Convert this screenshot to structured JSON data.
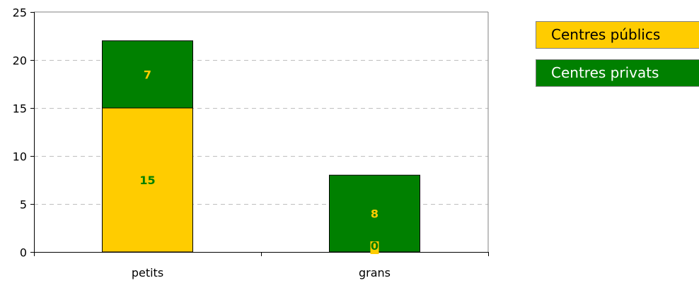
{
  "chart_data": {
    "type": "bar",
    "stacked": true,
    "categories": [
      "petits",
      "grans"
    ],
    "series": [
      {
        "name": "Centres públics",
        "values": [
          15,
          0
        ],
        "color": "#FFCC00",
        "label_color": "#008000"
      },
      {
        "name": "Centres privats",
        "values": [
          7,
          8
        ],
        "color": "#008000",
        "label_color": "#FFCC00"
      }
    ],
    "ylim": [
      0,
      25
    ],
    "yticks": [
      0,
      5,
      10,
      15,
      20,
      25
    ],
    "grid": true,
    "legend_position": "right",
    "title": "",
    "xlabel": "",
    "ylabel": ""
  },
  "legend": {
    "items": [
      {
        "label": "Centres públics",
        "bg": "#FFCC00",
        "fg": "#000000"
      },
      {
        "label": "Centres privats",
        "bg": "#008000",
        "fg": "#FFFFFF"
      }
    ]
  }
}
